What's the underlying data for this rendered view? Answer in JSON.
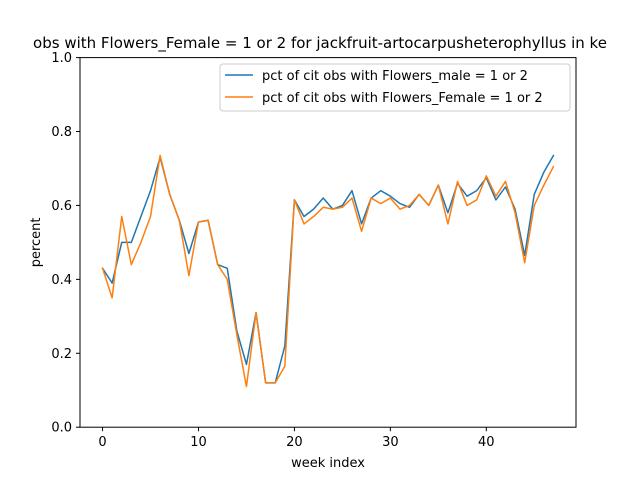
{
  "chart_data": {
    "type": "line",
    "title": "obs with Flowers_Female = 1 or 2 for jackfruit-artocarpusheterophyllus in ke",
    "xlabel": "week index",
    "ylabel": "percent",
    "xlim": [
      -2.35,
      49.35
    ],
    "ylim": [
      0.0,
      1.0
    ],
    "xticks": [
      0,
      10,
      20,
      30,
      40
    ],
    "yticks": [
      0.0,
      0.2,
      0.4,
      0.6,
      0.8,
      1.0
    ],
    "ytick_labels": [
      "0.0",
      "0.2",
      "0.4",
      "0.6",
      "0.8",
      "1.0"
    ],
    "grid": false,
    "legend_position": "upper-right",
    "series": [
      {
        "name": "pct of cit obs with Flowers_male = 1 or 2",
        "color": "#1f77b4",
        "x": [
          0,
          1,
          2,
          3,
          4,
          5,
          6,
          7,
          8,
          9,
          10,
          11,
          12,
          13,
          14,
          15,
          16,
          17,
          18,
          19,
          20,
          21,
          22,
          23,
          24,
          25,
          26,
          27,
          28,
          29,
          30,
          31,
          32,
          33,
          34,
          35,
          36,
          37,
          38,
          39,
          40,
          41,
          42,
          43,
          44,
          45,
          46,
          47
        ],
        "y": [
          0.43,
          0.39,
          0.5,
          0.5,
          0.57,
          0.64,
          0.73,
          0.63,
          0.56,
          0.47,
          0.555,
          0.56,
          0.44,
          0.43,
          0.26,
          0.17,
          0.31,
          0.12,
          0.12,
          0.22,
          0.615,
          0.57,
          0.59,
          0.62,
          0.59,
          0.6,
          0.64,
          0.55,
          0.62,
          0.64,
          0.625,
          0.605,
          0.595,
          0.63,
          0.6,
          0.655,
          0.58,
          0.66,
          0.625,
          0.64,
          0.675,
          0.615,
          0.65,
          0.59,
          0.465,
          0.63,
          0.69,
          0.735
        ]
      },
      {
        "name": "pct of cit obs with Flowers_Female = 1 or 2",
        "color": "#ff7f0e",
        "x": [
          0,
          1,
          2,
          3,
          4,
          5,
          6,
          7,
          8,
          9,
          10,
          11,
          12,
          13,
          14,
          15,
          16,
          17,
          18,
          19,
          20,
          21,
          22,
          23,
          24,
          25,
          26,
          27,
          28,
          29,
          30,
          31,
          32,
          33,
          34,
          35,
          36,
          37,
          38,
          39,
          40,
          41,
          42,
          43,
          44,
          45,
          46,
          47
        ],
        "y": [
          0.43,
          0.35,
          0.57,
          0.44,
          0.5,
          0.57,
          0.735,
          0.63,
          0.56,
          0.41,
          0.555,
          0.56,
          0.44,
          0.4,
          0.25,
          0.11,
          0.31,
          0.12,
          0.12,
          0.165,
          0.615,
          0.55,
          0.57,
          0.595,
          0.59,
          0.595,
          0.62,
          0.53,
          0.62,
          0.605,
          0.62,
          0.59,
          0.6,
          0.63,
          0.6,
          0.655,
          0.55,
          0.665,
          0.6,
          0.615,
          0.68,
          0.625,
          0.665,
          0.58,
          0.445,
          0.6,
          0.655,
          0.705
        ]
      }
    ]
  }
}
